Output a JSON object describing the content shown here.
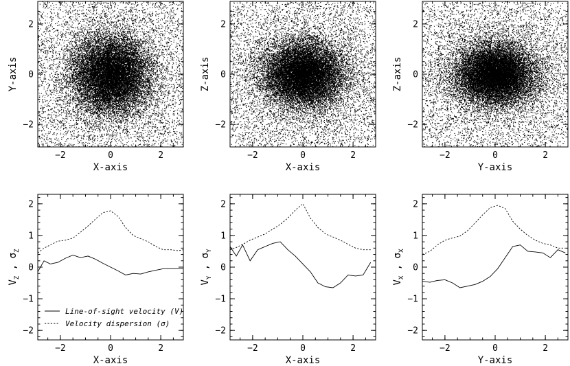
{
  "chart_data": [
    {
      "type": "scatter",
      "panel": "top-left",
      "xlabel": "X-axis",
      "ylabel": "Y-axis",
      "xlim": [
        -2.9,
        2.9
      ],
      "ylim": [
        -2.9,
        2.9
      ],
      "xticks": [
        -2,
        0,
        2
      ],
      "yticks": [
        -2,
        0,
        2
      ],
      "point_density": "dense central concentration, roughly spherical (x sigma ~0.8, y sigma ~0.8), sparse halo filling the box",
      "shape": {
        "sx": 0.8,
        "sy": 0.8
      },
      "seed": 11
    },
    {
      "type": "scatter",
      "panel": "top-middle",
      "xlabel": "X-axis",
      "ylabel": "Z-axis",
      "xlim": [
        -2.9,
        2.9
      ],
      "ylim": [
        -2.9,
        2.9
      ],
      "xticks": [
        -2,
        0,
        2
      ],
      "yticks": [
        -2,
        0,
        2
      ],
      "point_density": "dense central concentration, slightly flattened vertically (x sigma ~0.8, z sigma ~0.65)",
      "shape": {
        "sx": 0.8,
        "sy": 0.65
      },
      "seed": 23
    },
    {
      "type": "scatter",
      "panel": "top-right",
      "xlabel": "Y-axis",
      "ylabel": "Z-axis",
      "xlim": [
        -2.9,
        2.9
      ],
      "ylim": [
        -2.9,
        2.9
      ],
      "xticks": [
        -2,
        0,
        2
      ],
      "yticks": [
        -2,
        0,
        2
      ],
      "point_density": "dense central concentration, flattened vertically (y sigma ~0.8, z sigma ~0.6)",
      "shape": {
        "sx": 0.8,
        "sy": 0.6
      },
      "seed": 37
    },
    {
      "type": "line",
      "panel": "bottom-left",
      "xlabel": "X-axis",
      "ylabel": {
        "v": "V",
        "v_sub": "Z",
        "s": "σ",
        "s_sub": "Z"
      },
      "xlim": [
        -2.9,
        2.9
      ],
      "ylim": [
        -2.3,
        2.3
      ],
      "xticks": [
        -2,
        0,
        2
      ],
      "yticks": [
        -2,
        -1,
        0,
        1,
        2
      ],
      "legend": [
        "Line-of-sight velocity (V)",
        "Velocity dispersion (σ)"
      ],
      "legend_position": "lower-left",
      "series": [
        {
          "name": "Line-of-sight velocity (V)",
          "style": "solid",
          "x": [
            -2.9,
            -2.65,
            -2.4,
            -2.1,
            -1.8,
            -1.5,
            -1.2,
            -0.9,
            -0.6,
            -0.3,
            0.0,
            0.3,
            0.6,
            0.9,
            1.2,
            1.5,
            1.8,
            2.1,
            2.4,
            2.7,
            2.9
          ],
          "y": [
            -0.15,
            0.2,
            0.1,
            0.15,
            0.28,
            0.38,
            0.3,
            0.35,
            0.25,
            0.12,
            0.0,
            -0.12,
            -0.25,
            -0.2,
            -0.22,
            -0.15,
            -0.1,
            -0.05,
            -0.05,
            -0.05,
            -0.05
          ]
        },
        {
          "name": "Velocity dispersion (σ)",
          "style": "dashed",
          "x": [
            -2.9,
            -2.65,
            -2.4,
            -2.1,
            -1.8,
            -1.5,
            -1.2,
            -0.9,
            -0.6,
            -0.3,
            0.0,
            0.3,
            0.6,
            0.9,
            1.2,
            1.5,
            1.8,
            2.1,
            2.4,
            2.7,
            2.9
          ],
          "y": [
            0.45,
            0.6,
            0.7,
            0.82,
            0.85,
            0.92,
            1.1,
            1.3,
            1.52,
            1.72,
            1.78,
            1.6,
            1.25,
            1.0,
            0.9,
            0.8,
            0.65,
            0.55,
            0.55,
            0.52,
            0.55
          ]
        }
      ]
    },
    {
      "type": "line",
      "panel": "bottom-middle",
      "xlabel": "X-axis",
      "ylabel": {
        "v": "V",
        "v_sub": "Y",
        "s": "σ",
        "s_sub": "Y"
      },
      "xlim": [
        -2.9,
        2.9
      ],
      "ylim": [
        -2.3,
        2.3
      ],
      "xticks": [
        -2,
        0,
        2
      ],
      "yticks": [
        -2,
        -1,
        0,
        1,
        2
      ],
      "series": [
        {
          "name": "Line-of-sight velocity (V)",
          "style": "solid",
          "x": [
            -2.9,
            -2.65,
            -2.4,
            -2.1,
            -1.8,
            -1.5,
            -1.2,
            -0.9,
            -0.6,
            -0.3,
            0.0,
            0.3,
            0.6,
            0.9,
            1.2,
            1.5,
            1.8,
            2.1,
            2.4,
            2.7
          ],
          "y": [
            0.65,
            0.35,
            0.7,
            0.2,
            0.55,
            0.65,
            0.75,
            0.8,
            0.55,
            0.35,
            0.1,
            -0.15,
            -0.5,
            -0.62,
            -0.65,
            -0.5,
            -0.25,
            -0.28,
            -0.25,
            0.15
          ]
        },
        {
          "name": "Velocity dispersion (σ)",
          "style": "dashed",
          "x": [
            -2.9,
            -2.65,
            -2.4,
            -2.1,
            -1.8,
            -1.5,
            -1.2,
            -0.9,
            -0.6,
            -0.3,
            0.0,
            0.3,
            0.6,
            0.9,
            1.2,
            1.5,
            1.8,
            2.1,
            2.4,
            2.7
          ],
          "y": [
            0.55,
            0.62,
            0.72,
            0.85,
            0.95,
            1.05,
            1.2,
            1.35,
            1.55,
            1.8,
            2.0,
            1.55,
            1.25,
            1.05,
            0.95,
            0.85,
            0.72,
            0.6,
            0.55,
            0.55
          ]
        }
      ]
    },
    {
      "type": "line",
      "panel": "bottom-right",
      "xlabel": "Y-axis",
      "ylabel": {
        "v": "V",
        "v_sub": "X",
        "s": "σ",
        "s_sub": "X"
      },
      "xlim": [
        -2.9,
        2.9
      ],
      "ylim": [
        -2.3,
        2.3
      ],
      "xticks": [
        -2,
        0,
        2
      ],
      "yticks": [
        -2,
        -1,
        0,
        1,
        2
      ],
      "series": [
        {
          "name": "Line-of-sight velocity (V)",
          "style": "solid",
          "x": [
            -2.9,
            -2.6,
            -2.3,
            -2.0,
            -1.7,
            -1.4,
            -1.1,
            -0.8,
            -0.5,
            -0.2,
            0.1,
            0.4,
            0.7,
            1.0,
            1.3,
            1.6,
            1.9,
            2.2,
            2.5,
            2.8
          ],
          "y": [
            -0.45,
            -0.48,
            -0.42,
            -0.4,
            -0.5,
            -0.65,
            -0.6,
            -0.55,
            -0.45,
            -0.3,
            -0.05,
            0.3,
            0.65,
            0.7,
            0.5,
            0.48,
            0.45,
            0.3,
            0.55,
            0.45
          ]
        },
        {
          "name": "Velocity dispersion (σ)",
          "style": "dashed",
          "x": [
            -2.9,
            -2.6,
            -2.3,
            -2.0,
            -1.7,
            -1.4,
            -1.1,
            -0.8,
            -0.5,
            -0.2,
            0.1,
            0.4,
            0.7,
            1.0,
            1.3,
            1.6,
            1.9,
            2.2,
            2.5,
            2.8
          ],
          "y": [
            0.4,
            0.5,
            0.7,
            0.85,
            0.92,
            0.98,
            1.15,
            1.4,
            1.65,
            1.88,
            1.95,
            1.85,
            1.45,
            1.2,
            1.0,
            0.85,
            0.75,
            0.7,
            0.6,
            0.6
          ]
        }
      ]
    }
  ]
}
